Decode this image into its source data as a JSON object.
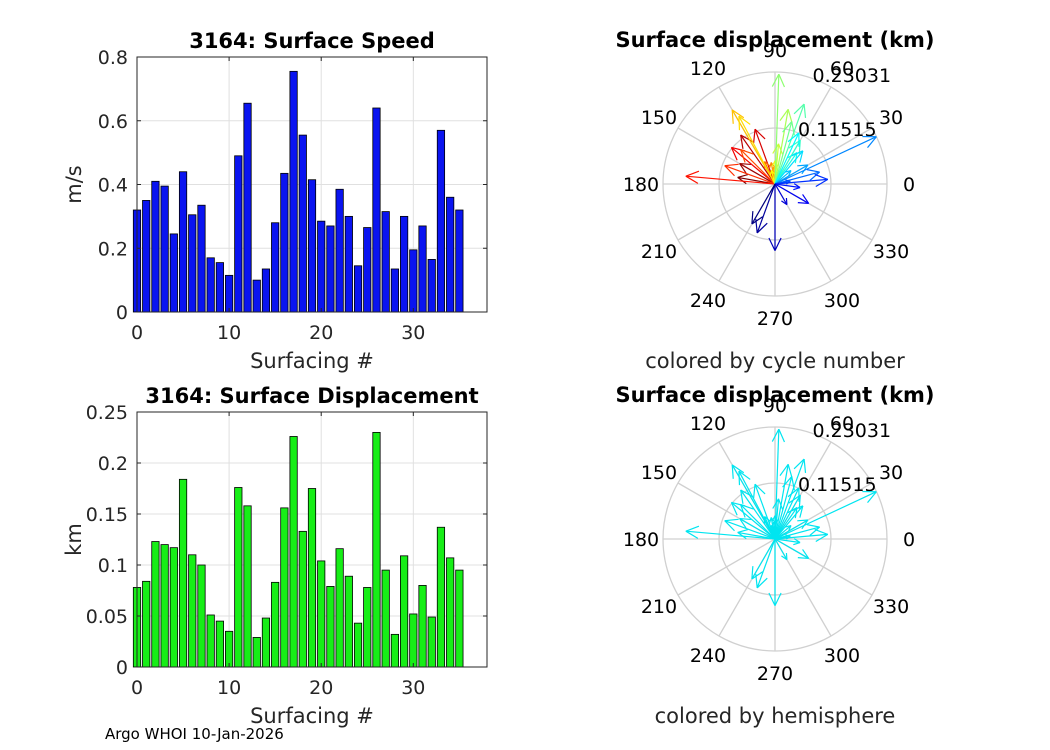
{
  "footer": "Argo WHOI 10-Jan-2026",
  "chart_data": [
    {
      "type": "bar",
      "title": "3164: Surface Speed",
      "xlabel": "Surfacing #",
      "ylabel": "m/s",
      "xlim": [
        0,
        38
      ],
      "ylim": [
        0,
        0.8
      ],
      "xticks": [
        0,
        10,
        20,
        30
      ],
      "yticks": [
        0,
        0.2,
        0.4,
        0.6,
        0.8
      ],
      "ytick_labels": [
        "0",
        "0.2",
        "0.4",
        "0.6",
        "0.8"
      ],
      "bar_color": "#0a14f0",
      "grid": true,
      "x": [
        0,
        1,
        2,
        3,
        4,
        5,
        6,
        7,
        8,
        9,
        10,
        11,
        12,
        13,
        14,
        15,
        16,
        17,
        18,
        19,
        20,
        21,
        22,
        23,
        24,
        25,
        26,
        27,
        28,
        29,
        30,
        31,
        32,
        33,
        34,
        35
      ],
      "values": [
        0.32,
        0.35,
        0.41,
        0.395,
        0.245,
        0.44,
        0.305,
        0.335,
        0.17,
        0.155,
        0.115,
        0.49,
        0.655,
        0.1,
        0.135,
        0.28,
        0.435,
        0.755,
        0.555,
        0.415,
        0.285,
        0.27,
        0.385,
        0.3,
        0.145,
        0.265,
        0.64,
        0.315,
        0.135,
        0.3,
        0.195,
        0.27,
        0.165,
        0.57,
        0.36,
        0.32
      ]
    },
    {
      "type": "bar",
      "title": "3164: Surface Displacement",
      "xlabel": "Surfacing #",
      "ylabel": "km",
      "xlim": [
        0,
        38
      ],
      "ylim": [
        0,
        0.25
      ],
      "xticks": [
        0,
        10,
        20,
        30
      ],
      "yticks": [
        0,
        0.05,
        0.1,
        0.15,
        0.2,
        0.25
      ],
      "ytick_labels": [
        "0",
        "0.05",
        "0.1",
        "0.15",
        "0.2",
        "0.25"
      ],
      "bar_color": "#17ee17",
      "grid": true,
      "x": [
        0,
        1,
        2,
        3,
        4,
        5,
        6,
        7,
        8,
        9,
        10,
        11,
        12,
        13,
        14,
        15,
        16,
        17,
        18,
        19,
        20,
        21,
        22,
        23,
        24,
        25,
        26,
        27,
        28,
        29,
        30,
        31,
        32,
        33,
        34,
        35
      ],
      "values": [
        0.078,
        0.084,
        0.123,
        0.12,
        0.117,
        0.184,
        0.11,
        0.1,
        0.051,
        0.045,
        0.035,
        0.176,
        0.158,
        0.029,
        0.048,
        0.083,
        0.156,
        0.226,
        0.133,
        0.175,
        0.104,
        0.079,
        0.116,
        0.089,
        0.043,
        0.078,
        0.23,
        0.095,
        0.032,
        0.109,
        0.052,
        0.08,
        0.049,
        0.137,
        0.107,
        0.095
      ]
    },
    {
      "type": "polar-compass",
      "title": "Surface displacement (km)",
      "caption": "colored by cycle number",
      "color_mode": "cycle",
      "rmax": 0.23031,
      "ring_labels": [
        "0.11515",
        "0.23031"
      ],
      "angle_labels": [
        "0",
        "30",
        "60",
        "90",
        "120",
        "150",
        "180",
        "210",
        "240",
        "270",
        "300",
        "330"
      ]
    },
    {
      "type": "polar-compass",
      "title": "Surface displacement (km)",
      "caption": "colored by hemisphere",
      "color_mode": "hemisphere",
      "hemisphere_color": "#00e5f0",
      "rmax": 0.23031,
      "ring_labels": [
        "0.11515",
        "0.23031"
      ],
      "angle_labels": [
        "0",
        "30",
        "60",
        "90",
        "120",
        "150",
        "180",
        "210",
        "240",
        "270",
        "300",
        "330"
      ]
    }
  ],
  "displacement_angles_deg": [
    170,
    150,
    125,
    110,
    140,
    175,
    160,
    135,
    115,
    100,
    95,
    120,
    118,
    105,
    90,
    85,
    80,
    88,
    75,
    70,
    60,
    55,
    65,
    50,
    40,
    30,
    25,
    15,
    10,
    5,
    -8,
    -30,
    -60,
    -90,
    -110,
    -120
  ]
}
